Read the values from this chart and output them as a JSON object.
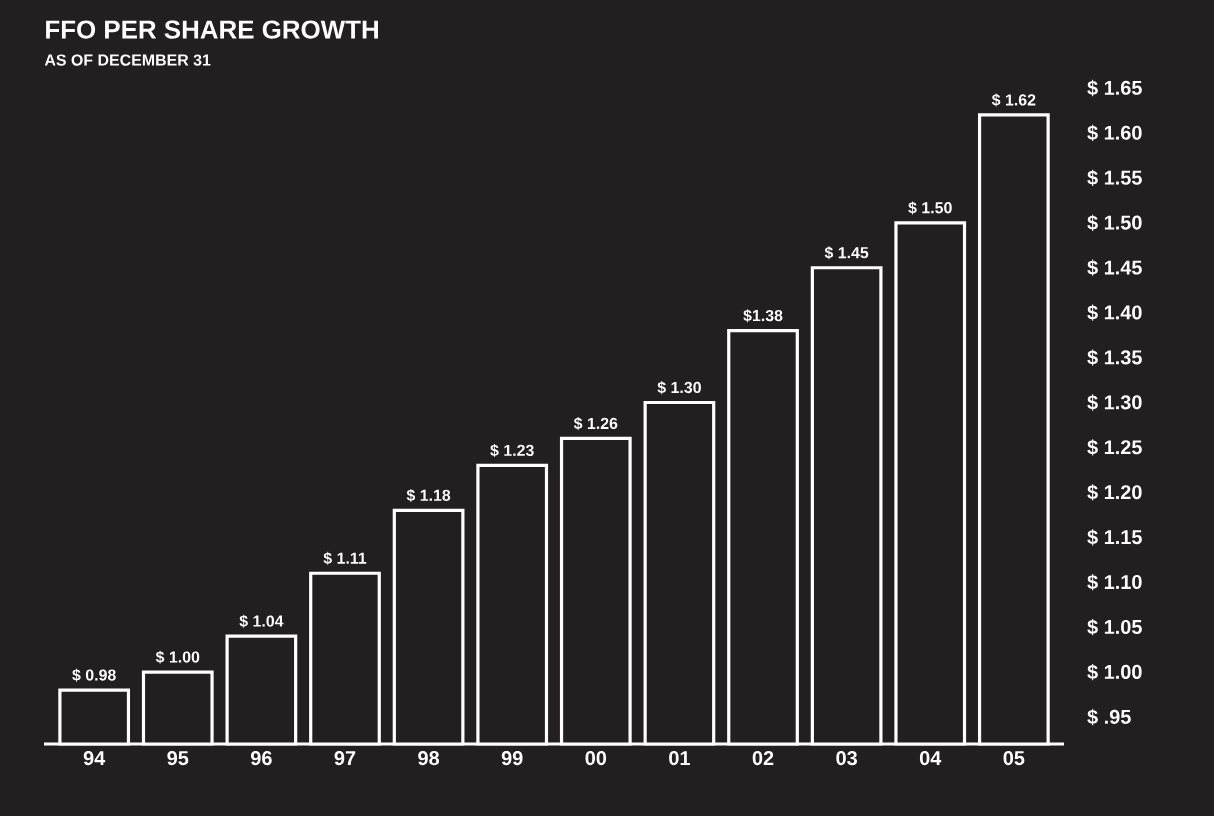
{
  "chart_data": {
    "type": "bar",
    "title": "FFO PER SHARE GROWTH",
    "subtitle": "AS OF DECEMBER 31",
    "categories": [
      "94",
      "95",
      "96",
      "97",
      "98",
      "99",
      "00",
      "01",
      "02",
      "03",
      "04",
      "05"
    ],
    "values": [
      0.98,
      1.0,
      1.04,
      1.11,
      1.18,
      1.23,
      1.26,
      1.3,
      1.38,
      1.45,
      1.5,
      1.62
    ],
    "value_labels": [
      "$ 0.98",
      "$ 1.00",
      "$ 1.04",
      "$ 1.11",
      "$ 1.18",
      "$ 1.23",
      "$ 1.26",
      "$ 1.30",
      "$1.38",
      "$ 1.45",
      "$ 1.50",
      "$ 1.62"
    ],
    "color": "#ffffff",
    "ylim": [
      0.92,
      1.65
    ],
    "yticks": [
      {
        "value": 0.95,
        "label": "$  .95"
      },
      {
        "value": 1.0,
        "label": "$ 1.00"
      },
      {
        "value": 1.05,
        "label": "$ 1.05"
      },
      {
        "value": 1.1,
        "label": "$ 1.10"
      },
      {
        "value": 1.15,
        "label": "$ 1.15"
      },
      {
        "value": 1.2,
        "label": "$ 1.20"
      },
      {
        "value": 1.25,
        "label": "$ 1.25"
      },
      {
        "value": 1.3,
        "label": "$ 1.30"
      },
      {
        "value": 1.35,
        "label": "$ 1.35"
      },
      {
        "value": 1.4,
        "label": "$ 1.40"
      },
      {
        "value": 1.45,
        "label": "$ 1.45"
      },
      {
        "value": 1.5,
        "label": "$ 1.50"
      },
      {
        "value": 1.55,
        "label": "$ 1.55"
      },
      {
        "value": 1.6,
        "label": "$ 1.60"
      },
      {
        "value": 1.65,
        "label": "$ 1.65"
      }
    ]
  }
}
